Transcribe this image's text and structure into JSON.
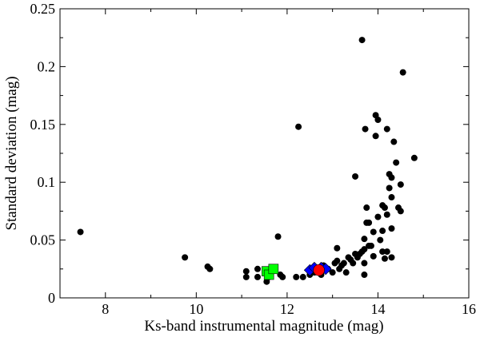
{
  "chart_data": {
    "type": "scatter",
    "title": "",
    "xlabel": "Ks-band instrumental magnitude (mag)",
    "ylabel": "Standard deviation (mag)",
    "xlim": [
      7,
      16
    ],
    "ylim": [
      0,
      0.25
    ],
    "x_ticks": [
      8,
      10,
      12,
      14,
      16
    ],
    "y_ticks": [
      0,
      0.05,
      0.1,
      0.15,
      0.2,
      0.25
    ],
    "x_tick_labels": [
      "8",
      "10",
      "12",
      "14",
      "16"
    ],
    "y_tick_labels": [
      "0",
      "0.05",
      "0.1",
      "0.15",
      "0.2",
      "0.25"
    ],
    "grid": false,
    "legend": "none",
    "series": [
      {
        "marker": "circle",
        "color": "#000000",
        "points": [
          [
            7.45,
            0.057
          ],
          [
            9.75,
            0.035
          ],
          [
            10.25,
            0.027
          ],
          [
            10.3,
            0.025
          ],
          [
            11.1,
            0.023
          ],
          [
            11.1,
            0.018
          ],
          [
            11.35,
            0.025
          ],
          [
            11.35,
            0.018
          ],
          [
            11.55,
            0.014
          ],
          [
            11.6,
            0.018
          ],
          [
            11.8,
            0.053
          ],
          [
            11.85,
            0.02
          ],
          [
            11.9,
            0.018
          ],
          [
            12.2,
            0.018
          ],
          [
            12.25,
            0.148
          ],
          [
            12.35,
            0.018
          ],
          [
            12.5,
            0.02
          ],
          [
            12.6,
            0.022
          ],
          [
            12.75,
            0.02
          ],
          [
            12.8,
            0.028
          ],
          [
            12.9,
            0.025
          ],
          [
            13.0,
            0.022
          ],
          [
            13.05,
            0.03
          ],
          [
            13.1,
            0.032
          ],
          [
            13.1,
            0.043
          ],
          [
            13.15,
            0.025
          ],
          [
            13.2,
            0.028
          ],
          [
            13.25,
            0.03
          ],
          [
            13.3,
            0.022
          ],
          [
            13.35,
            0.035
          ],
          [
            13.4,
            0.033
          ],
          [
            13.45,
            0.03
          ],
          [
            13.5,
            0.038
          ],
          [
            13.5,
            0.105
          ],
          [
            13.55,
            0.035
          ],
          [
            13.6,
            0.038
          ],
          [
            13.65,
            0.04
          ],
          [
            13.65,
            0.223
          ],
          [
            13.7,
            0.042
          ],
          [
            13.7,
            0.02
          ],
          [
            13.7,
            0.03
          ],
          [
            13.7,
            0.051
          ],
          [
            13.72,
            0.146
          ],
          [
            13.75,
            0.065
          ],
          [
            13.75,
            0.078
          ],
          [
            13.8,
            0.045
          ],
          [
            13.8,
            0.065
          ],
          [
            13.85,
            0.045
          ],
          [
            13.9,
            0.036
          ],
          [
            13.9,
            0.057
          ],
          [
            13.95,
            0.158
          ],
          [
            13.95,
            0.14
          ],
          [
            14.0,
            0.154
          ],
          [
            14.0,
            0.07
          ],
          [
            14.05,
            0.05
          ],
          [
            14.1,
            0.08
          ],
          [
            14.1,
            0.04
          ],
          [
            14.1,
            0.058
          ],
          [
            14.15,
            0.078
          ],
          [
            14.15,
            0.034
          ],
          [
            14.2,
            0.146
          ],
          [
            14.2,
            0.04
          ],
          [
            14.2,
            0.072
          ],
          [
            14.25,
            0.107
          ],
          [
            14.25,
            0.095
          ],
          [
            14.3,
            0.087
          ],
          [
            14.3,
            0.104
          ],
          [
            14.3,
            0.06
          ],
          [
            14.3,
            0.035
          ],
          [
            14.35,
            0.135
          ],
          [
            14.4,
            0.117
          ],
          [
            14.45,
            0.078
          ],
          [
            14.5,
            0.098
          ],
          [
            14.5,
            0.075
          ],
          [
            14.55,
            0.195
          ],
          [
            14.8,
            0.121
          ]
        ]
      },
      {
        "marker": "square",
        "color": "#00ff00",
        "points": [
          [
            11.55,
            0.023
          ],
          [
            11.6,
            0.02
          ],
          [
            11.7,
            0.025
          ]
        ]
      },
      {
        "marker": "diamond",
        "color": "#0000ff",
        "points": [
          [
            12.5,
            0.024
          ],
          [
            12.6,
            0.026
          ],
          [
            12.75,
            0.026
          ],
          [
            12.85,
            0.025
          ]
        ]
      },
      {
        "marker": "circle-large",
        "color": "#ff0000",
        "points": [
          [
            12.7,
            0.024
          ]
        ]
      }
    ]
  }
}
